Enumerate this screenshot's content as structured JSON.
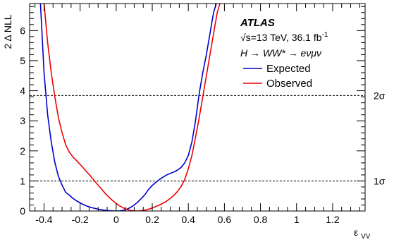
{
  "chart_data": {
    "type": "line",
    "experiment": "ATLAS",
    "energy_label": "=13 TeV, 36.1 fb",
    "sqrt_s": "√s",
    "lumi_exp": "-1",
    "process_label": "H → WW* → eνμν",
    "xlabel": "ε",
    "xlabel_sub": "VV",
    "ylabel": "2 Δ NLL",
    "xlim": [
      -0.48,
      1.38
    ],
    "ylim": [
      0,
      6.9
    ],
    "xticks": [
      "-0.4",
      "-0.2",
      "0",
      "0.2",
      "0.4",
      "0.6",
      "0.8",
      "1",
      "1.2"
    ],
    "xtick_values": [
      -0.4,
      -0.2,
      0,
      0.2,
      0.4,
      0.6,
      0.8,
      1.0,
      1.2
    ],
    "yticks": [
      "0",
      "1",
      "2",
      "3",
      "4",
      "5",
      "6"
    ],
    "ytick_values": [
      0,
      1,
      2,
      3,
      4,
      5,
      6
    ],
    "thresholds": [
      {
        "y": 1.0,
        "label": "1σ"
      },
      {
        "y": 3.84,
        "label": "2σ"
      }
    ],
    "legend": {
      "placement": "top-right"
    },
    "series": [
      {
        "name": "Expected",
        "color": "#0000cc",
        "x": [
          -0.42,
          -0.4,
          -0.38,
          -0.36,
          -0.34,
          -0.32,
          -0.3,
          -0.28,
          -0.26,
          -0.24,
          -0.22,
          -0.2,
          -0.18,
          -0.16,
          -0.14,
          -0.12,
          -0.1,
          -0.08,
          -0.06,
          -0.04,
          -0.02,
          0.0,
          0.02,
          0.04,
          0.06,
          0.08,
          0.1,
          0.12,
          0.14,
          0.16,
          0.18,
          0.2,
          0.22,
          0.24,
          0.26,
          0.28,
          0.3,
          0.32,
          0.34,
          0.36,
          0.38,
          0.4,
          0.42,
          0.44,
          0.46,
          0.48,
          0.5,
          0.52,
          0.54,
          0.555
        ],
        "y": [
          6.9,
          4.6,
          3.2,
          2.3,
          1.62,
          1.15,
          0.86,
          0.62,
          0.53,
          0.42,
          0.34,
          0.27,
          0.21,
          0.16,
          0.12,
          0.09,
          0.06,
          0.04,
          0.02,
          0.01,
          0.005,
          0.0,
          0.005,
          0.02,
          0.06,
          0.12,
          0.2,
          0.3,
          0.42,
          0.55,
          0.72,
          0.85,
          0.95,
          1.05,
          1.13,
          1.2,
          1.25,
          1.3,
          1.36,
          1.45,
          1.6,
          1.85,
          2.3,
          3.0,
          3.9,
          4.6,
          5.2,
          5.9,
          6.6,
          6.9
        ]
      },
      {
        "name": "Observed",
        "color": "#ee0000",
        "x": [
          -0.4,
          -0.38,
          -0.36,
          -0.34,
          -0.32,
          -0.3,
          -0.28,
          -0.26,
          -0.24,
          -0.22,
          -0.2,
          -0.18,
          -0.16,
          -0.14,
          -0.12,
          -0.1,
          -0.08,
          -0.06,
          -0.04,
          -0.02,
          0.0,
          0.02,
          0.04,
          0.06,
          0.08,
          0.1,
          0.12,
          0.14,
          0.16,
          0.18,
          0.2,
          0.22,
          0.24,
          0.26,
          0.28,
          0.3,
          0.32,
          0.34,
          0.36,
          0.38,
          0.4,
          0.42,
          0.44,
          0.46,
          0.48,
          0.5,
          0.52,
          0.54,
          0.56,
          0.575
        ],
        "y": [
          6.9,
          5.6,
          4.6,
          3.8,
          3.1,
          2.6,
          2.2,
          1.96,
          1.8,
          1.68,
          1.55,
          1.42,
          1.28,
          1.15,
          1.0,
          0.86,
          0.72,
          0.58,
          0.46,
          0.35,
          0.25,
          0.17,
          0.1,
          0.05,
          0.02,
          0.005,
          0.0,
          0.01,
          0.03,
          0.06,
          0.1,
          0.15,
          0.2,
          0.26,
          0.33,
          0.42,
          0.52,
          0.65,
          0.82,
          1.05,
          1.4,
          1.85,
          2.45,
          3.1,
          3.8,
          4.5,
          5.2,
          5.9,
          6.6,
          6.9
        ]
      }
    ]
  }
}
